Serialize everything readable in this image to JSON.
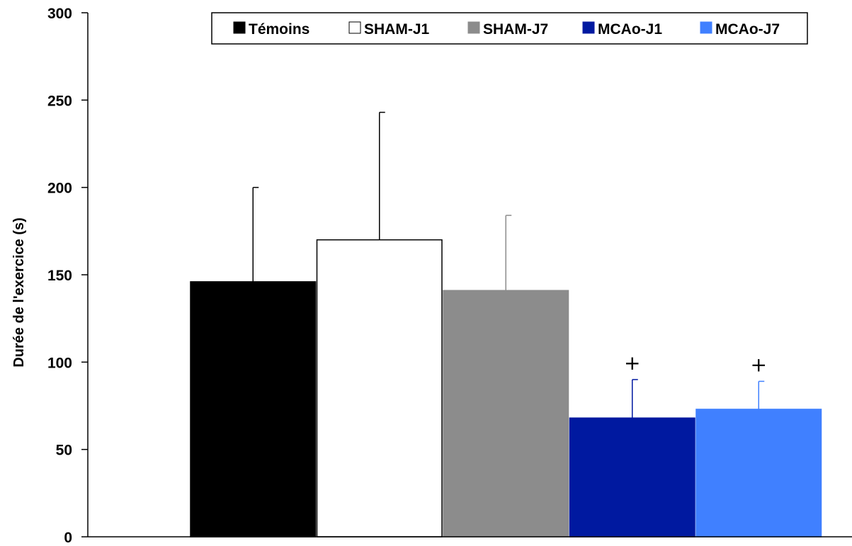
{
  "chart_data": {
    "type": "bar",
    "title": "",
    "xlabel": "",
    "ylabel": "Durée de l'exercice (s)",
    "ylim": [
      0,
      300
    ],
    "yticks": [
      0,
      50,
      100,
      150,
      200,
      250,
      300
    ],
    "ytick_labels": [
      "0",
      "50",
      "100",
      "150",
      "200",
      "250",
      "300"
    ],
    "grid": false,
    "legend_position": "top",
    "series": [
      {
        "name": "Témoins",
        "value": 146,
        "error": 54,
        "color": "#000000",
        "stroke": "#000000",
        "error_color": "#000000",
        "annotation": ""
      },
      {
        "name": "SHAM-J1",
        "value": 170,
        "error": 73,
        "color": "#ffffff",
        "stroke": "#000000",
        "error_color": "#000000",
        "annotation": ""
      },
      {
        "name": "SHAM-J7",
        "value": 141,
        "error": 43,
        "color": "#8c8c8c",
        "stroke": "#8c8c8c",
        "error_color": "#8c8c8c",
        "annotation": ""
      },
      {
        "name": "MCAo-J1",
        "value": 68,
        "error": 22,
        "color": "#0019a0",
        "stroke": "#0019a0",
        "error_color": "#0019a0",
        "annotation": "+"
      },
      {
        "name": "MCAo-J7",
        "value": 73,
        "error": 16,
        "color": "#4080ff",
        "stroke": "#4080ff",
        "error_color": "#4080ff",
        "annotation": "+"
      }
    ]
  }
}
